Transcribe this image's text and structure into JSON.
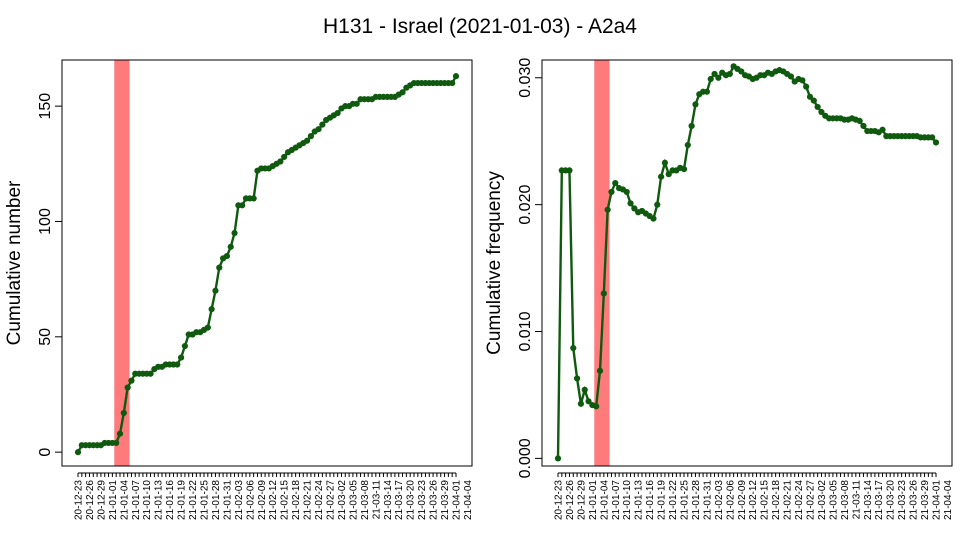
{
  "title": "H131 - Israel (2021-01-03) - A2a4",
  "colors": {
    "series": "#0f5a0f",
    "highlight": "#ff7a7a"
  },
  "chart_data": [
    {
      "type": "line",
      "ylabel": "Cumulative number",
      "ylim": [
        -6,
        170
      ],
      "yticks": [
        0,
        50,
        100,
        150
      ],
      "highlight_x_index": [
        9.5,
        13.5
      ],
      "x_tick_labels": [
        "20-12-23",
        "20-12-26",
        "20-12-29",
        "21-01-01",
        "21-01-04",
        "21-01-07",
        "21-01-10",
        "21-01-13",
        "21-01-16",
        "21-01-19",
        "21-01-22",
        "21-01-25",
        "21-01-28",
        "21-01-31",
        "21-02-03",
        "21-02-06",
        "21-02-09",
        "21-02-12",
        "21-02-15",
        "21-02-18",
        "21-02-21",
        "21-02-24",
        "21-02-27",
        "21-03-02",
        "21-03-05",
        "21-03-08",
        "21-03-11",
        "21-03-14",
        "21-03-17",
        "21-03-20",
        "21-03-23",
        "21-03-26",
        "21-03-29",
        "21-04-01",
        "21-04-04"
      ],
      "values": [
        0,
        3,
        3,
        3,
        3,
        3,
        3,
        4,
        4,
        4,
        4,
        8,
        17,
        28,
        31,
        34,
        34,
        34,
        34,
        34,
        36,
        37,
        37,
        38,
        38,
        38,
        38,
        41,
        46,
        51,
        51,
        52,
        52,
        53,
        54,
        62,
        70,
        80,
        84,
        85,
        89,
        95,
        107,
        107,
        110,
        110,
        110,
        122,
        123,
        123,
        123,
        124,
        125,
        126,
        128,
        130,
        131,
        132,
        133,
        134,
        135,
        137,
        139,
        140,
        142,
        144,
        145,
        146,
        147,
        149,
        150,
        150,
        151,
        151,
        153,
        153,
        153,
        153,
        154,
        154,
        154,
        154,
        154,
        154,
        155,
        156,
        158,
        159,
        160,
        160,
        160,
        160,
        160,
        160,
        160,
        160,
        160,
        160,
        160,
        163
      ]
    },
    {
      "type": "line",
      "ylabel": "Cumulative frequency",
      "ylim": [
        -0.0006,
        0.0314
      ],
      "yticks": [
        0.0,
        0.01,
        0.02,
        0.03
      ],
      "ytick_labels": [
        "0.000",
        "0.010",
        "0.020",
        "0.030"
      ],
      "highlight_x_index": [
        9.5,
        13.5
      ],
      "x_tick_labels": [
        "20-12-23",
        "20-12-26",
        "20-12-29",
        "21-01-01",
        "21-01-04",
        "21-01-07",
        "21-01-10",
        "21-01-13",
        "21-01-16",
        "21-01-19",
        "21-01-22",
        "21-01-25",
        "21-01-28",
        "21-01-31",
        "21-02-03",
        "21-02-06",
        "21-02-09",
        "21-02-12",
        "21-02-15",
        "21-02-18",
        "21-02-21",
        "21-02-24",
        "21-02-27",
        "21-03-02",
        "21-03-05",
        "21-03-08",
        "21-03-11",
        "21-03-14",
        "21-03-17",
        "21-03-20",
        "21-03-23",
        "21-03-26",
        "21-03-29",
        "21-04-01",
        "21-04-04"
      ],
      "values": [
        0.0,
        0.0227,
        0.0227,
        0.0227,
        0.0087,
        0.0063,
        0.0043,
        0.0054,
        0.0045,
        0.0042,
        0.0041,
        0.0069,
        0.013,
        0.0196,
        0.021,
        0.0217,
        0.0213,
        0.0212,
        0.021,
        0.0201,
        0.0197,
        0.0194,
        0.0195,
        0.0193,
        0.0191,
        0.0189,
        0.02,
        0.0222,
        0.0233,
        0.0224,
        0.0227,
        0.0227,
        0.0229,
        0.0228,
        0.0247,
        0.0262,
        0.0279,
        0.0287,
        0.0289,
        0.0289,
        0.0299,
        0.0303,
        0.03,
        0.0304,
        0.0302,
        0.0303,
        0.0309,
        0.0307,
        0.0305,
        0.0302,
        0.0301,
        0.0299,
        0.03,
        0.0302,
        0.0302,
        0.0304,
        0.0303,
        0.0305,
        0.0306,
        0.0305,
        0.0303,
        0.0301,
        0.0297,
        0.0299,
        0.0298,
        0.0293,
        0.0285,
        0.0282,
        0.0277,
        0.0273,
        0.027,
        0.0268,
        0.0268,
        0.0268,
        0.0268,
        0.0267,
        0.0267,
        0.0268,
        0.0267,
        0.0266,
        0.0262,
        0.0258,
        0.0258,
        0.0258,
        0.0257,
        0.0259,
        0.0254,
        0.0254,
        0.0254,
        0.0254,
        0.0254,
        0.0254,
        0.0254,
        0.0254,
        0.0254,
        0.0253,
        0.0253,
        0.0253,
        0.0253,
        0.0249
      ]
    }
  ]
}
